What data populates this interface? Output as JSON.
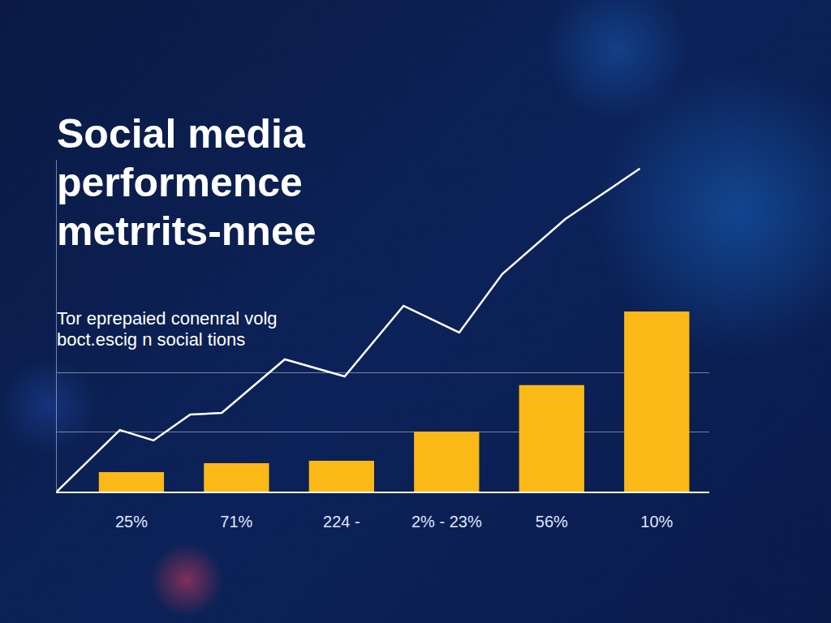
{
  "chart_data": {
    "type": "bar",
    "title": "Social media\nperformence\nmetrrits-nnee",
    "subtitle": "Tor eprepaied conenral volg\nboct.escig n social tions",
    "categories": [
      "25%",
      "71%",
      "224 -",
      "2% - 23%",
      "56%",
      "10%"
    ],
    "series": [
      {
        "type": "bar",
        "color": "#fbb917",
        "values": [
          8.2,
          12,
          13,
          25.3,
          44.9,
          76
        ]
      },
      {
        "type": "line",
        "color": "#ffffff",
        "x": [
          -0.71,
          -0.11,
          0.21,
          0.56,
          0.86,
          1.46,
          2.03,
          2.59,
          3.12,
          3.53,
          4.13,
          4.84
        ],
        "values": [
          0,
          26,
          21.6,
          32.5,
          33.2,
          55.8,
          48.6,
          78.4,
          67.1,
          91.8,
          115,
          136.3
        ]
      }
    ],
    "ylim": [
      0,
      140
    ],
    "yticks": [
      0,
      25,
      50
    ],
    "grid": true,
    "tick_labels": "x"
  }
}
